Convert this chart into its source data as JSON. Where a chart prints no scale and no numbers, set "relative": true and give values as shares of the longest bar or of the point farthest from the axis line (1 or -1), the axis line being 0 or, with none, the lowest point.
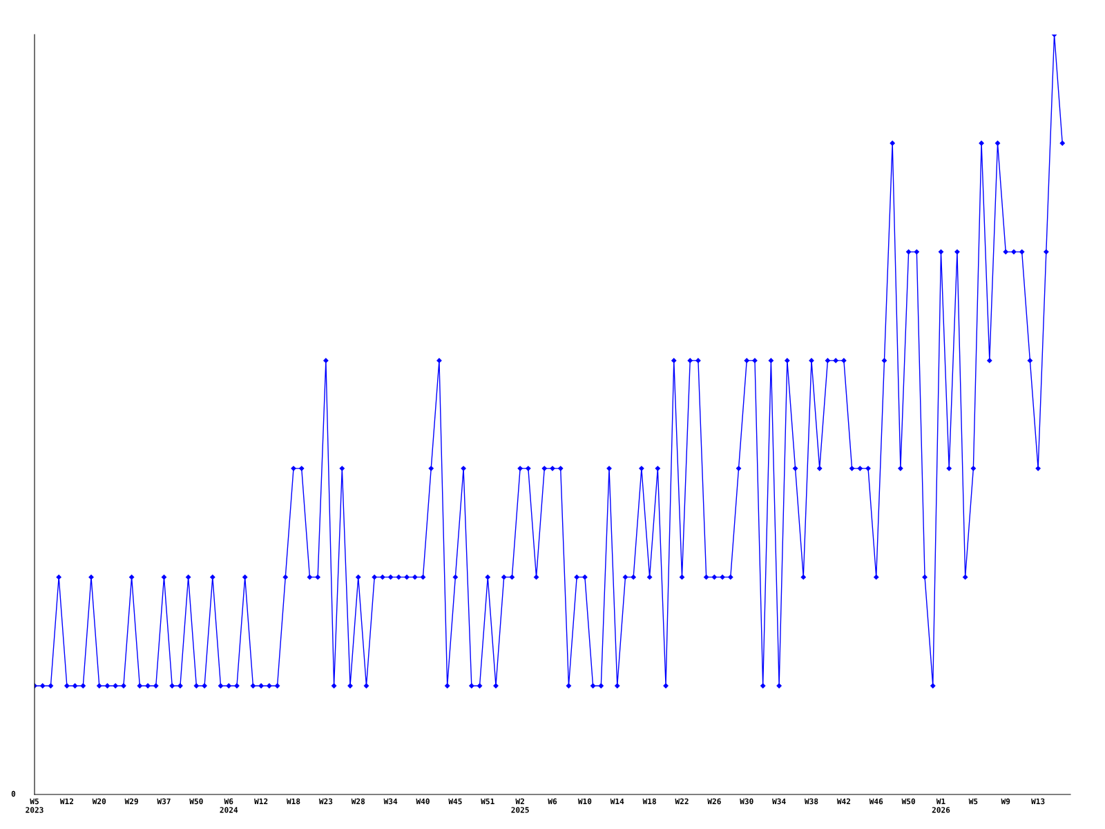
{
  "chart_data": {
    "type": "line",
    "relative": true,
    "marker": "diamond",
    "line_style": "solid",
    "grid": false,
    "legend": false,
    "annotations": [
      "0"
    ],
    "categories": [
      "W5\n2023",
      null,
      null,
      null,
      "W12",
      null,
      null,
      null,
      "W20",
      null,
      null,
      null,
      "W29",
      null,
      null,
      null,
      "W37",
      null,
      null,
      null,
      "W50",
      null,
      null,
      null,
      "W6\n2024",
      null,
      null,
      null,
      "W12",
      null,
      null,
      null,
      "W18",
      null,
      null,
      null,
      "W23",
      null,
      null,
      null,
      "W28",
      null,
      null,
      null,
      "W34",
      null,
      null,
      null,
      "W40",
      null,
      null,
      null,
      "W45",
      null,
      null,
      null,
      "W51",
      null,
      null,
      null,
      "W2\n2025",
      null,
      null,
      null,
      "W6",
      null,
      null,
      null,
      "W10",
      null,
      null,
      null,
      "W14",
      null,
      null,
      null,
      "W18",
      null,
      null,
      null,
      "W22",
      null,
      null,
      null,
      "W26",
      null,
      null,
      null,
      "W30",
      null,
      null,
      null,
      "W34",
      null,
      null,
      null,
      "W38",
      null,
      null,
      null,
      "W42",
      null,
      null,
      null,
      "W46",
      null,
      null,
      null,
      "W50",
      null,
      null,
      null,
      "W1\n2026",
      null,
      null,
      null,
      "W5",
      null,
      null,
      null,
      "W9",
      null,
      null,
      null,
      "W13",
      null,
      null,
      null
    ],
    "series": [
      {
        "color": "#0000ff",
        "values": [
          0.143,
          0.143,
          0.143,
          0.286,
          0.143,
          0.143,
          0.143,
          0.286,
          0.143,
          0.143,
          0.143,
          0.143,
          0.286,
          0.143,
          0.143,
          0.143,
          0.286,
          0.143,
          0.143,
          0.286,
          0.143,
          0.143,
          0.286,
          0.143,
          0.143,
          0.143,
          0.286,
          0.143,
          0.143,
          0.143,
          0.143,
          0.286,
          0.429,
          0.429,
          0.286,
          0.286,
          0.571,
          0.143,
          0.429,
          0.143,
          0.286,
          0.143,
          0.286,
          0.286,
          0.286,
          0.286,
          0.286,
          0.286,
          0.286,
          0.429,
          0.571,
          0.143,
          0.286,
          0.429,
          0.143,
          0.143,
          0.286,
          0.143,
          0.286,
          0.286,
          0.429,
          0.429,
          0.286,
          0.429,
          0.429,
          0.429,
          0.143,
          0.286,
          0.286,
          0.143,
          0.143,
          0.429,
          0.143,
          0.286,
          0.286,
          0.429,
          0.286,
          0.429,
          0.143,
          0.571,
          0.286,
          0.571,
          0.571,
          0.286,
          0.286,
          0.286,
          0.286,
          0.429,
          0.571,
          0.571,
          0.143,
          0.571,
          0.143,
          0.571,
          0.429,
          0.286,
          0.571,
          0.429,
          0.571,
          0.571,
          0.571,
          0.429,
          0.429,
          0.429,
          0.286,
          0.571,
          0.857,
          0.429,
          0.714,
          0.714,
          0.286,
          0.143,
          0.714,
          0.429,
          0.714,
          0.286,
          0.429,
          0.857,
          0.571,
          0.857,
          0.714,
          0.714,
          0.714,
          0.571,
          0.429,
          0.714,
          1,
          0.857
        ]
      }
    ]
  }
}
